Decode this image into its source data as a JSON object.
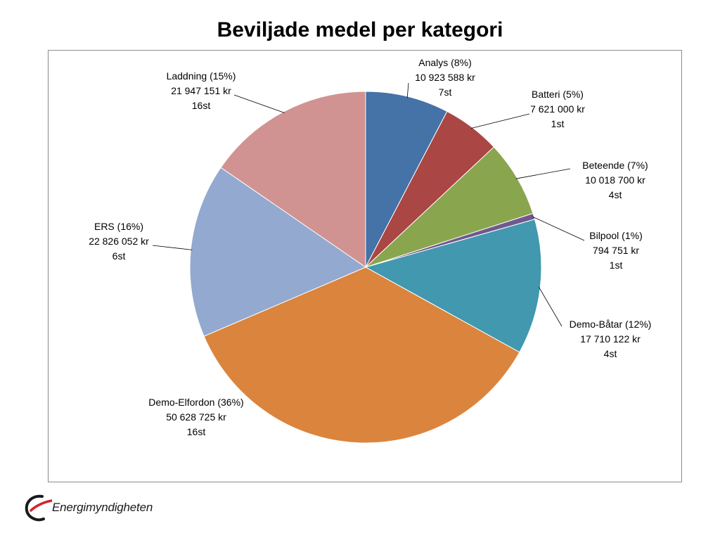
{
  "chart_data": {
    "type": "pie",
    "title": "Beviljade medel per kategori",
    "slices": [
      {
        "name": "Analys",
        "percent_label": "8%",
        "amount": "10 923 588 kr",
        "count": "7st",
        "value": 10923588,
        "color": "#4572A7"
      },
      {
        "name": "Batteri",
        "percent_label": "5%",
        "amount": "7 621 000 kr",
        "count": "1st",
        "value": 7621000,
        "color": "#AA4643"
      },
      {
        "name": "Beteende",
        "percent_label": "7%",
        "amount": "10 018 700 kr",
        "count": "4st",
        "value": 10018700,
        "color": "#89A54E"
      },
      {
        "name": "Bilpool",
        "percent_label": "1%",
        "amount": "794 751 kr",
        "count": "1st",
        "value": 794751,
        "color": "#71588F"
      },
      {
        "name": "Demo-Båtar",
        "percent_label": "12%",
        "amount": "17 710 122 kr",
        "count": "4st",
        "value": 17710122,
        "color": "#4198AF"
      },
      {
        "name": "Demo-Elfordon",
        "percent_label": "36%",
        "amount": "50 628 725 kr",
        "count": "16st",
        "value": 50628725,
        "color": "#DB843D"
      },
      {
        "name": "ERS",
        "percent_label": "16%",
        "amount": "22 826 052 kr",
        "count": "6st",
        "value": 22826052,
        "color": "#93A9CF"
      },
      {
        "name": "Laddning",
        "percent_label": "15%",
        "amount": "21 947 151 kr",
        "count": "16st",
        "value": 21947151,
        "color": "#D19392"
      }
    ]
  },
  "logo": {
    "text": "Energimyndigheten",
    "mark_color": "#d2232a"
  }
}
